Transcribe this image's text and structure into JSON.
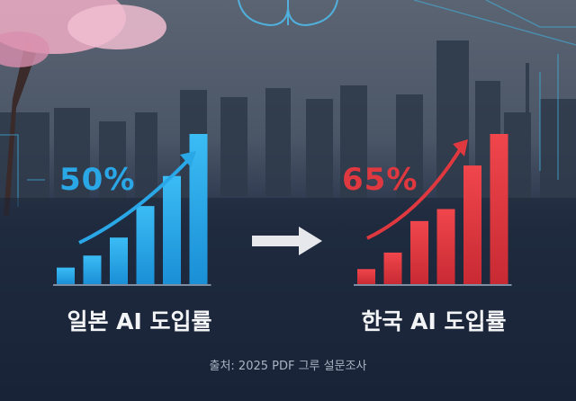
{
  "colors": {
    "japan": "#2aa7e6",
    "korea": "#e0383f",
    "background": "#1a2437",
    "arrow": "#e6e8ec"
  },
  "icons": [
    "brain-circuit-icon",
    "cherry-blossom-tree",
    "circuit-lines",
    "right-arrow-icon",
    "trend-arrow-icon"
  ],
  "chart_data": [
    {
      "type": "bar",
      "title": "",
      "value_label": "50%",
      "category_label": "일본 AI 도입률",
      "values": [
        0.11,
        0.19,
        0.31,
        0.52,
        0.72,
        1.0
      ],
      "color": "#2aa7e6",
      "grid": false
    },
    {
      "type": "bar",
      "title": "",
      "value_label": "65%",
      "category_label": "한국 AI 도입률",
      "values": [
        0.1,
        0.21,
        0.42,
        0.5,
        0.79,
        1.0
      ],
      "color": "#e0383f",
      "grid": false
    }
  ],
  "source": "출처: 2025 PDF 그루 설문조사"
}
